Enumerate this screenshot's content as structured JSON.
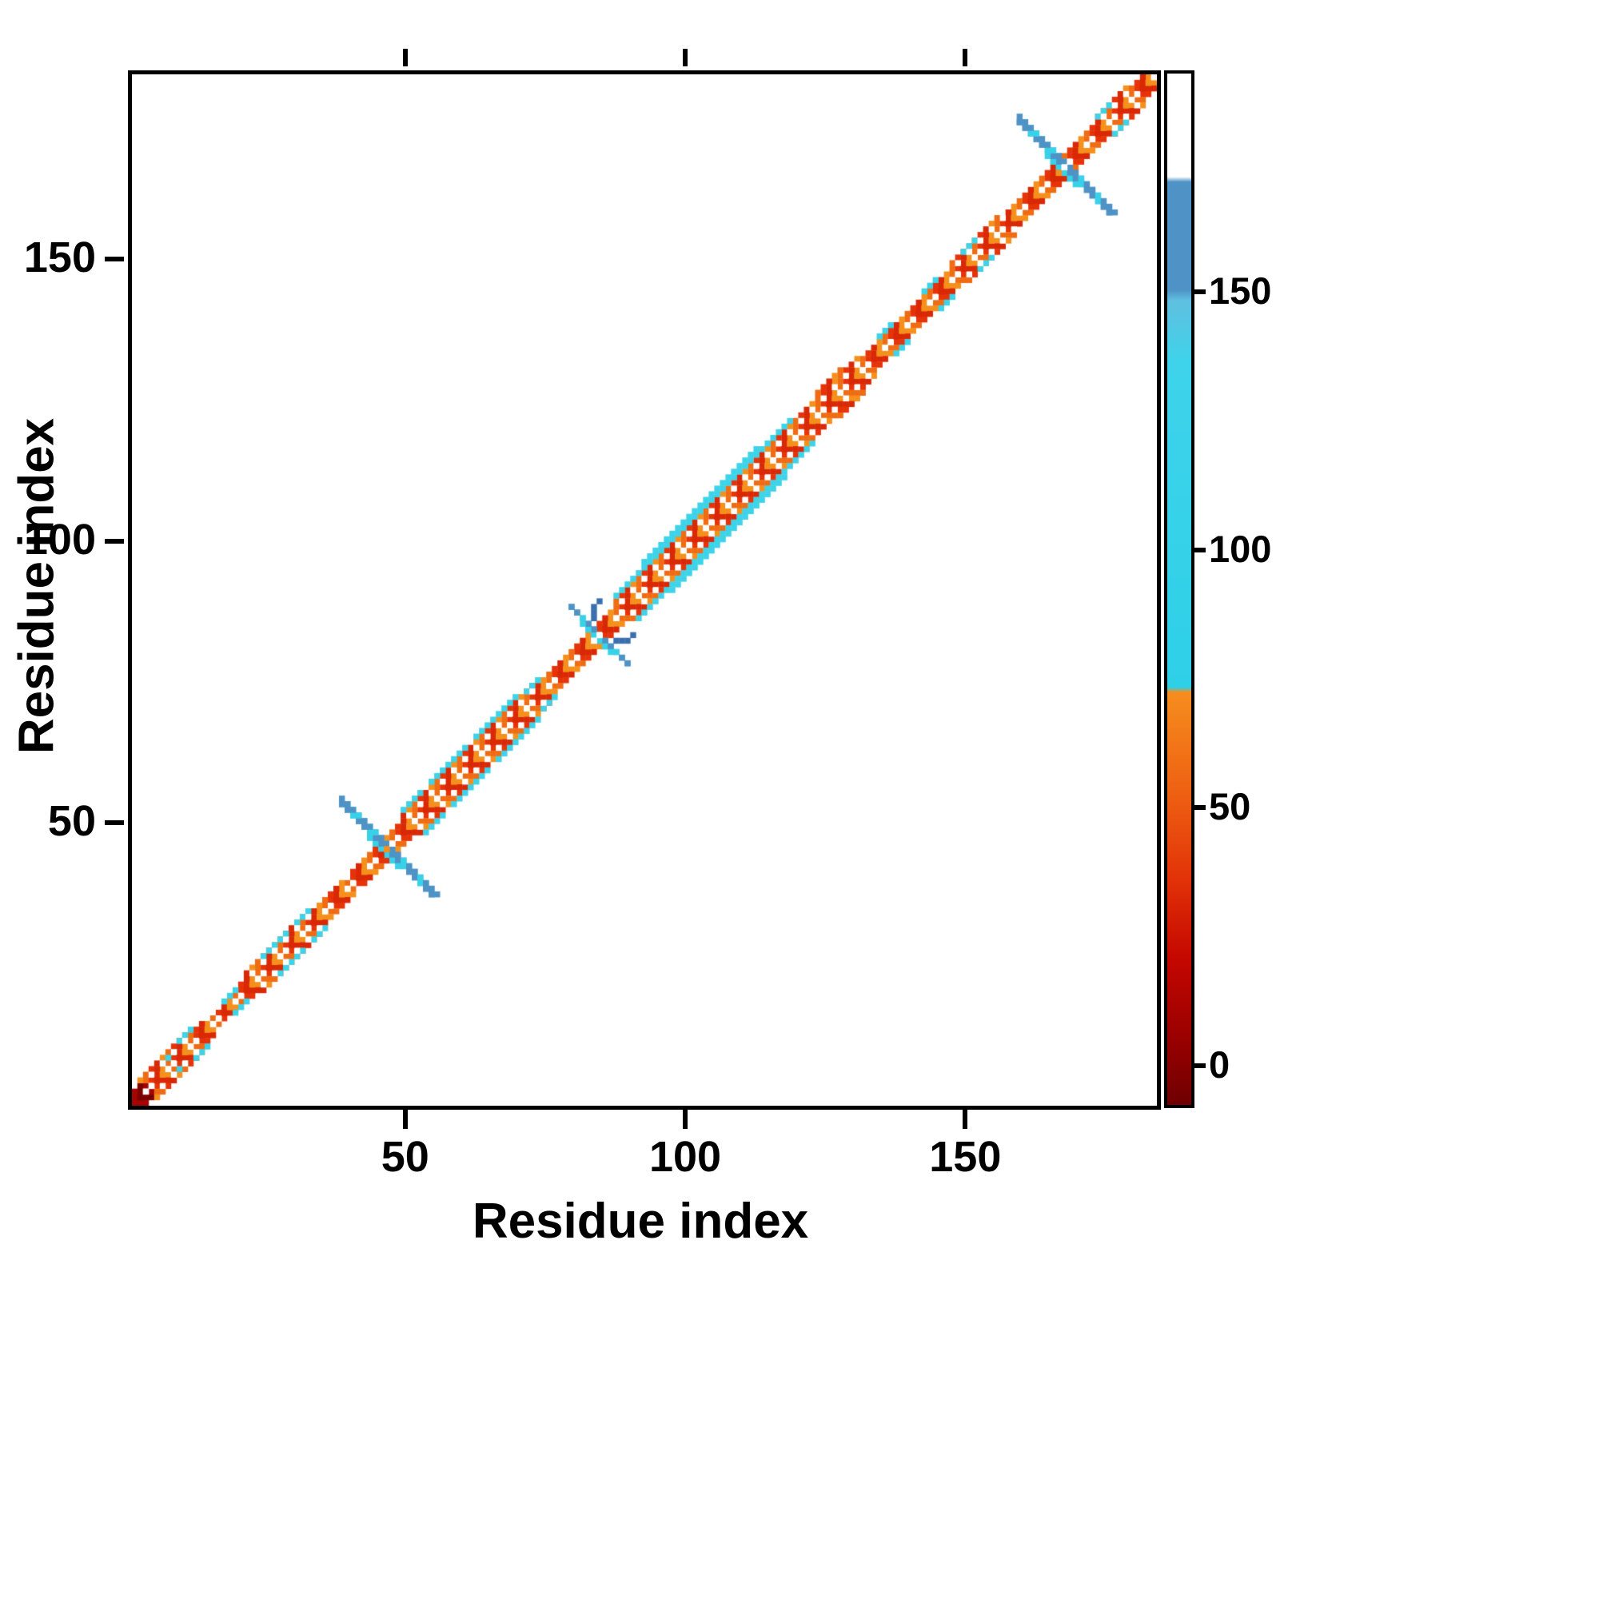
{
  "figure": {
    "background": "#ffffff",
    "frame_color": "#000000"
  },
  "chart_data": {
    "type": "heatmap",
    "title": "",
    "xlabel": "Residue index",
    "ylabel": "Residue index",
    "x_range": [
      1,
      183
    ],
    "y_range": [
      1,
      183
    ],
    "x_ticks": [
      50,
      100,
      150
    ],
    "y_ticks": [
      50,
      100,
      150
    ],
    "grid": false,
    "legend": "colorbar-right",
    "colorbar": {
      "range": [
        -7,
        193
      ],
      "ticks": [
        0,
        50,
        100,
        150
      ],
      "stops": [
        {
          "pos": 0.0,
          "color": "#6e0000"
        },
        {
          "pos": 0.05,
          "color": "#900000"
        },
        {
          "pos": 0.14,
          "color": "#c40600"
        },
        {
          "pos": 0.22,
          "color": "#e23308"
        },
        {
          "pos": 0.3,
          "color": "#ee5f12"
        },
        {
          "pos": 0.4,
          "color": "#f68d1e"
        },
        {
          "pos": 0.405,
          "color": "#2ed0e8"
        },
        {
          "pos": 0.72,
          "color": "#3ed3ea"
        },
        {
          "pos": 0.78,
          "color": "#5fc0e0"
        },
        {
          "pos": 0.79,
          "color": "#4f93c6"
        },
        {
          "pos": 0.895,
          "color": "#4f93c6"
        },
        {
          "pos": 0.9,
          "color": "#ffffff"
        },
        {
          "pos": 1.0,
          "color": "#ffffff"
        }
      ]
    },
    "contact_map": {
      "n_residues": 183,
      "symmetric": true,
      "dark_end_residues": 4,
      "colors": {
        "band": [
          "#e63309",
          "#ef6c14",
          "#f5901d",
          "#d92806"
        ],
        "dark": [
          "#7d0000",
          "#a50500"
        ],
        "cyan": "#3dd3e8",
        "cross_blue": "#4f93c6",
        "cross_cyan": "#38d2e8",
        "tail_blue": "#3a6fae",
        "diagonal_white": "#ffffff"
      },
      "band_segments": [
        [
          1,
          183,
          [
            1
          ]
        ],
        [
          2,
          15,
          [
            2
          ]
        ],
        [
          5,
          13,
          [
            3
          ]
        ],
        [
          22,
          40,
          [
            2
          ]
        ],
        [
          24,
          34,
          [
            3
          ]
        ],
        [
          42,
          57,
          [
            2
          ]
        ],
        [
          52,
          57,
          [
            3
          ]
        ],
        [
          58,
          75,
          [
            2,
            3
          ]
        ],
        [
          76,
          89,
          [
            2
          ]
        ],
        [
          90,
          124,
          [
            2,
            3
          ]
        ],
        [
          125,
          133,
          [
            2,
            3
          ]
        ],
        [
          127,
          131,
          [
            4
          ]
        ],
        [
          134,
          160,
          [
            2
          ]
        ],
        [
          150,
          158,
          [
            3
          ]
        ],
        [
          161,
          183,
          [
            2
          ]
        ],
        [
          176,
          181,
          [
            3
          ]
        ]
      ],
      "cyan_segments": [
        [
          8,
          10,
          2
        ],
        [
          12,
          14,
          3
        ],
        [
          19,
          21,
          2
        ],
        [
          27,
          31,
          3
        ],
        [
          33,
          35,
          3
        ],
        [
          53,
          56,
          4
        ],
        [
          58,
          64,
          4
        ],
        [
          66,
          73,
          4
        ],
        [
          74,
          76,
          3
        ],
        [
          91,
          122,
          4
        ],
        [
          97,
          117,
          5
        ],
        [
          137,
          139,
          3
        ],
        [
          145,
          147,
          3
        ],
        [
          152,
          154,
          3
        ],
        [
          176,
          178,
          3
        ]
      ],
      "cross_features": [
        {
          "center": 46,
          "radius": 8,
          "thickness": 2
        },
        {
          "center": 84,
          "radius": 5,
          "thickness": 1
        },
        {
          "center": 167,
          "radius": 8,
          "thickness": 2
        }
      ],
      "tail_cells": [
        [
          87,
          83
        ],
        [
          88,
          83
        ],
        [
          89,
          83
        ],
        [
          90,
          84
        ]
      ]
    }
  }
}
